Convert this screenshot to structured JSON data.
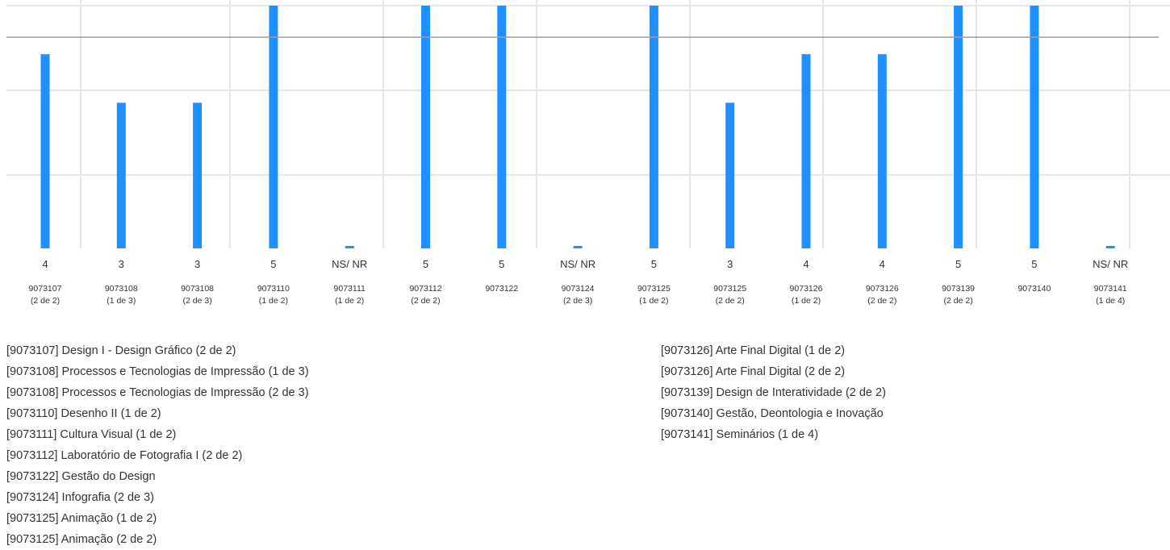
{
  "chart_data": {
    "type": "bar",
    "categories": [
      {
        "code": "9073107",
        "part": "(2 de 2)"
      },
      {
        "code": "9073108",
        "part": "(1 de 3)"
      },
      {
        "code": "9073108",
        "part": "(2 de 3)"
      },
      {
        "code": "9073110",
        "part": "(1 de 2)"
      },
      {
        "code": "9073111",
        "part": "(1 de 2)"
      },
      {
        "code": "9073112",
        "part": "(2 de 2)"
      },
      {
        "code": "9073122",
        "part": ""
      },
      {
        "code": "9073124",
        "part": "(2 de 3)"
      },
      {
        "code": "9073125",
        "part": "(1 de 2)"
      },
      {
        "code": "9073125",
        "part": "(2 de 2)"
      },
      {
        "code": "9073126",
        "part": "(1 de 2)"
      },
      {
        "code": "9073126",
        "part": "(2 de 2)"
      },
      {
        "code": "9073139",
        "part": "(2 de 2)"
      },
      {
        "code": "9073140",
        "part": ""
      },
      {
        "code": "9073141",
        "part": "(1 de 4)"
      }
    ],
    "values": [
      4,
      3,
      3,
      5,
      0,
      5,
      5,
      0,
      5,
      3,
      4,
      4,
      5,
      5,
      0
    ],
    "value_labels": [
      "4",
      "3",
      "3",
      "5",
      "NS/ NR",
      "5",
      "5",
      "NS/ NR",
      "5",
      "3",
      "4",
      "4",
      "5",
      "5",
      "NS/ NR"
    ],
    "ylim": [
      0,
      5
    ],
    "reference_line": 4.35,
    "grid": true,
    "bar_color": "#1e90ff",
    "grid_color": "#e6e6e6",
    "reference_line_color": "#9e9e9e",
    "legend": {
      "left": [
        "[9073107] Design I - Design Gráfico (2 de 2)",
        "[9073108] Processos e Tecnologias de Impressão (1 de 3)",
        "[9073108] Processos e Tecnologias de Impressão (2 de 3)",
        "[9073110] Desenho II (1 de 2)",
        "[9073111] Cultura Visual (1 de 2)",
        "[9073112] Laboratório de Fotografia I (2 de 2)",
        "[9073122] Gestão do Design",
        "[9073124] Infografia (2 de 3)",
        "[9073125] Animação (1 de 2)",
        "[9073125] Animação (2 de 2)"
      ],
      "right": [
        "[9073126] Arte Final Digital (1 de 2)",
        "[9073126] Arte Final Digital (2 de 2)",
        "[9073139] Design de Interatividade (2 de 2)",
        "[9073140] Gestão, Deontologia e Inovação",
        "[9073141] Seminários (1 de 4)"
      ]
    }
  }
}
